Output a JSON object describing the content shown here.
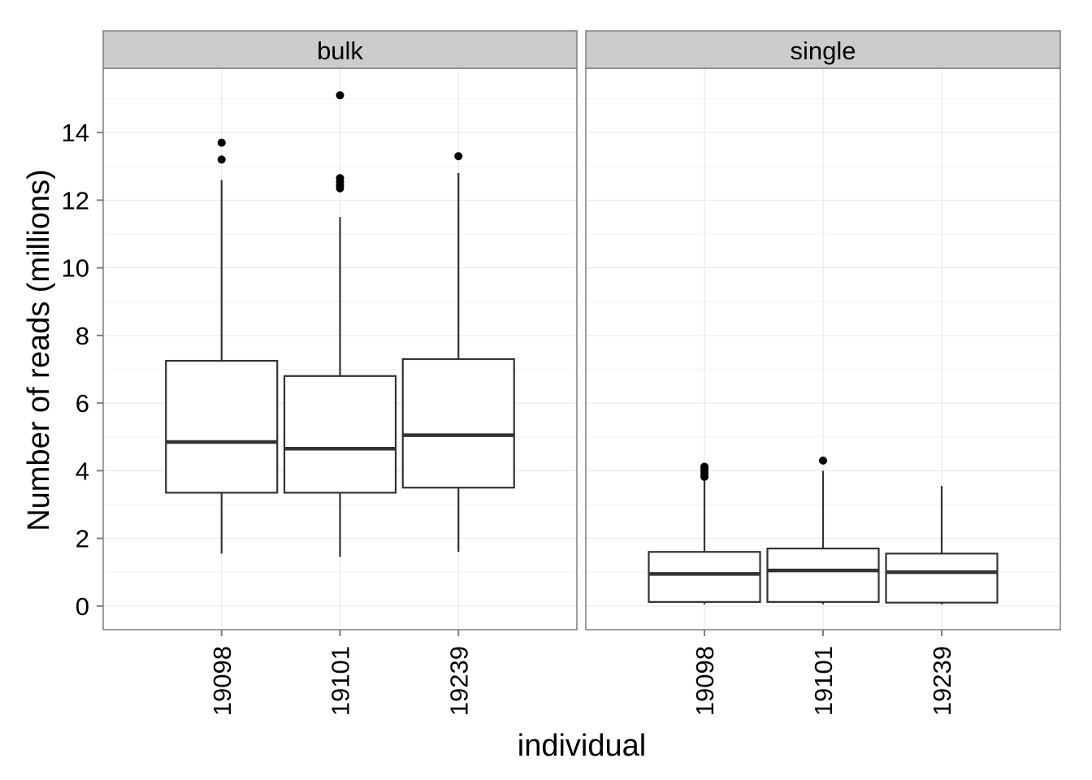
{
  "chart_data": {
    "type": "boxplot",
    "xlabel": "individual",
    "ylabel": "Number of reads (millions)",
    "ylim": [
      -0.7,
      15.9
    ],
    "yticks": [
      0,
      2,
      4,
      6,
      8,
      10,
      12,
      14
    ],
    "grid": true,
    "categories": [
      "19098",
      "19101",
      "19239"
    ],
    "panels": [
      {
        "name": "bulk",
        "boxes": [
          {
            "category": "19098",
            "whisker_low": 1.55,
            "q1": 3.35,
            "median": 4.85,
            "q3": 7.25,
            "whisker_high": 12.6,
            "outliers": [
              13.2,
              13.7
            ]
          },
          {
            "category": "19101",
            "whisker_low": 1.45,
            "q1": 3.35,
            "median": 4.65,
            "q3": 6.8,
            "whisker_high": 11.5,
            "outliers": [
              12.35,
              12.45,
              12.55,
              12.65,
              15.1
            ]
          },
          {
            "category": "19239",
            "whisker_low": 1.6,
            "q1": 3.5,
            "median": 5.05,
            "q3": 7.3,
            "whisker_high": 12.8,
            "outliers": [
              13.3
            ]
          }
        ]
      },
      {
        "name": "single",
        "boxes": [
          {
            "category": "19098",
            "whisker_low": 0.05,
            "q1": 0.12,
            "median": 0.95,
            "q3": 1.6,
            "whisker_high": 3.75,
            "outliers": [
              3.82,
              3.9,
              3.98,
              4.05,
              4.12
            ]
          },
          {
            "category": "19101",
            "whisker_low": 0.05,
            "q1": 0.12,
            "median": 1.05,
            "q3": 1.7,
            "whisker_high": 4.0,
            "outliers": [
              4.3
            ]
          },
          {
            "category": "19239",
            "whisker_low": 0.05,
            "q1": 0.1,
            "median": 1.0,
            "q3": 1.55,
            "whisker_high": 3.55,
            "outliers": []
          }
        ]
      }
    ]
  }
}
